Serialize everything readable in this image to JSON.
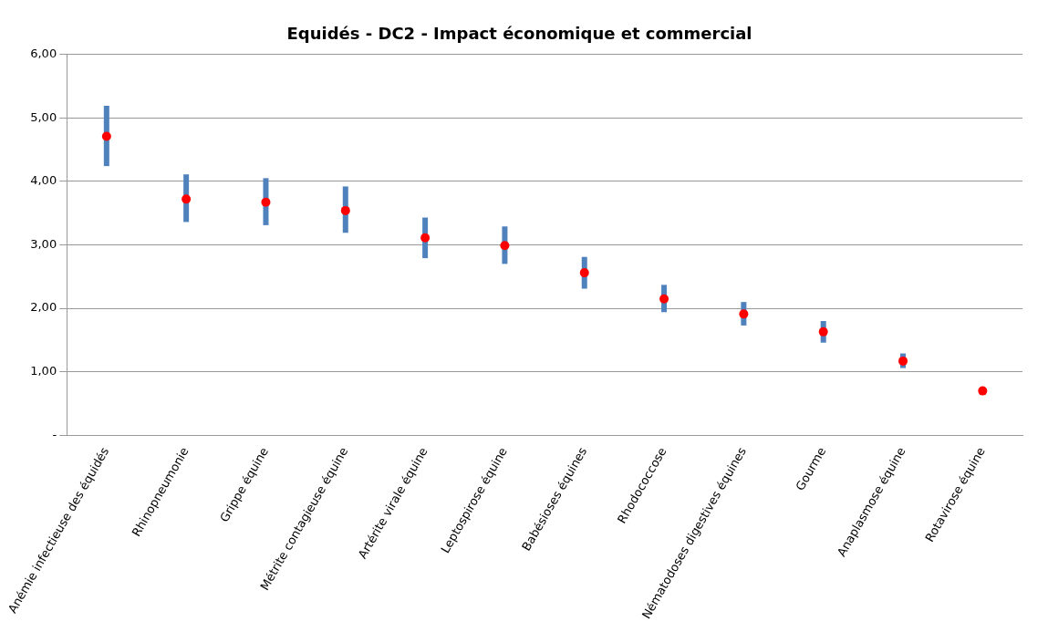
{
  "chart_data": {
    "type": "scatter",
    "title": "Equidés - DC2 - Impact économique et commercial",
    "categories": [
      "Anémie infectieuse des équidés",
      "Rhinopneumonie",
      "Grippe équine",
      "Métrite contagieuse équine",
      "Artérite virale équine",
      "Leptospirose équine",
      "Babésioses équines",
      "Rhodococcose",
      "Nématodoses digestives équines",
      "Gourme",
      "Anaplasmose équine",
      "Rotavirose équine"
    ],
    "series": [
      {
        "color": "#ff0000",
        "values": [
          4.71,
          3.72,
          3.67,
          3.54,
          3.11,
          2.99,
          2.56,
          2.15,
          1.91,
          1.63,
          1.17,
          0.7
        ],
        "errors": [
          [
            4.24,
            5.19
          ],
          [
            3.36,
            4.11
          ],
          [
            3.31,
            4.05
          ],
          [
            3.19,
            3.92
          ],
          [
            2.79,
            3.43
          ],
          [
            2.7,
            3.29
          ],
          [
            2.31,
            2.81
          ],
          [
            1.94,
            2.37
          ],
          [
            1.73,
            2.1
          ],
          [
            1.46,
            1.8
          ],
          [
            1.06,
            1.29
          ],
          null
        ]
      }
    ],
    "ylim": [
      0,
      6
    ],
    "yticks": [
      {
        "value": 0,
        "label": "-"
      },
      {
        "value": 1,
        "label": "1,00"
      },
      {
        "value": 2,
        "label": "2,00"
      },
      {
        "value": 3,
        "label": "3,00"
      },
      {
        "value": 4,
        "label": "4,00"
      },
      {
        "value": 5,
        "label": "5,00"
      },
      {
        "value": 6,
        "label": "6,00"
      }
    ],
    "grid": "y",
    "marker": "circle",
    "legend": false
  }
}
